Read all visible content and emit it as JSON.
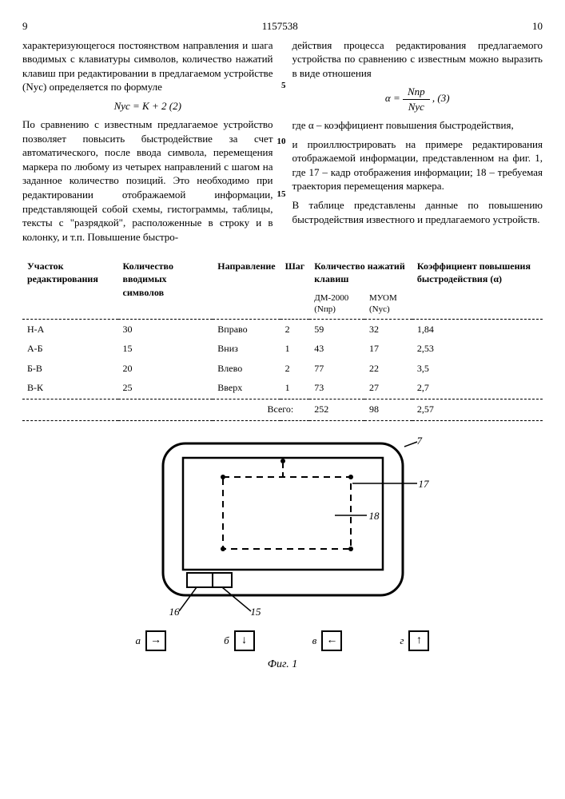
{
  "header": {
    "left_colnum": "9",
    "patent_no": "1157538",
    "right_colnum": "10"
  },
  "left_column": {
    "para1": "характеризующегося постоянством направления и шага вводимых с клавиатуры символов, количество нажатий клавиш при редактировании в предлагаемом устройстве (Nус) определяется по формуле",
    "formula1": "Nус = K + 2        (2)",
    "para2": "По сравнению с известным предлагаемое устройство позволяет повысить быстродействие за счет автоматического, после ввода символа, перемещения маркера по любому из четырех направлений с шагом на заданное количество позиций. Это необходимо при редактировании отображаемой информации, представляющей собой схемы, гистограммы, таблицы, тексты с \"разрядкой\", расположенные в строку и в колонку, и т.п. Повышение быстро-",
    "ln5": "5",
    "ln10": "10",
    "ln15": "15"
  },
  "right_column": {
    "para1": "действия процесса редактирования предлагаемого устройства по сравнению с известным можно выразить в виде отношения",
    "formula2_lhs": "α =",
    "formula2_num": "Nпр",
    "formula2_den": "Nус",
    "formula2_eq": ",        (3)",
    "para2": "где α – коэффициент повышения быстродействия,",
    "para3": "и проиллюстрировать на примере редактирования отображаемой информации, представленном на фиг. 1, где 17 – кадр отображения информации; 18 – требуемая траектория перемещения маркера.",
    "para4": "В таблице представлены данные по повышению быстродействия известного и предлагаемого устройств."
  },
  "table": {
    "headers": {
      "c1": "Участок редактирования",
      "c2": "Количество вводимых символов",
      "c3": "Направление",
      "c4": "Шаг",
      "c5": "Количество нажатий клавиш",
      "c6": "Коэффициент повышения быстродействия (α)"
    },
    "subheaders": {
      "c5a": "ДМ-2000 (Nпр)",
      "c5b": "МУОМ (Nус)"
    },
    "rows": [
      {
        "c1": "Н-А",
        "c2": "30",
        "c3": "Вправо",
        "c4": "2",
        "c5a": "59",
        "c5b": "32",
        "c6": "1,84"
      },
      {
        "c1": "А-Б",
        "c2": "15",
        "c3": "Вниз",
        "c4": "1",
        "c5a": "43",
        "c5b": "17",
        "c6": "2,53"
      },
      {
        "c1": "Б-В",
        "c2": "20",
        "c3": "Влево",
        "c4": "2",
        "c5a": "77",
        "c5b": "22",
        "c6": "3,5"
      },
      {
        "c1": "В-К",
        "c2": "25",
        "c3": "Вверх",
        "c4": "1",
        "c5a": "73",
        "c5b": "27",
        "c6": "2,7"
      }
    ],
    "total": {
      "label": "Всего:",
      "c5a": "252",
      "c5b": "98",
      "c6": "2,57"
    }
  },
  "figure": {
    "callout_7": "7",
    "callout_17": "17",
    "callout_18": "18",
    "callout_15": "15",
    "callout_16": "16",
    "arrows": {
      "a": "а",
      "b": "б",
      "v": "в",
      "g": "г"
    },
    "label": "Фиг. 1"
  }
}
